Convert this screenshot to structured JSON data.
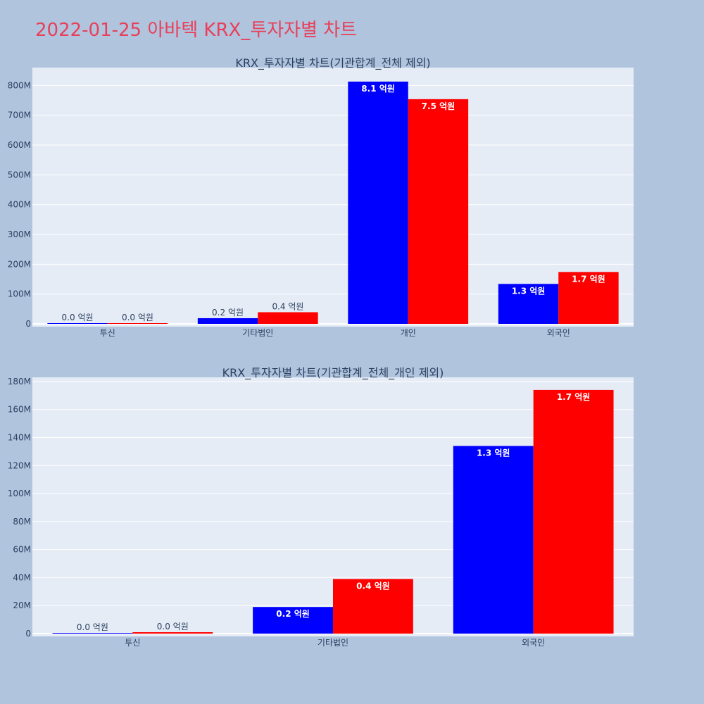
{
  "page": {
    "title": "2022-01-25 아바텍 KRX_투자자별 차트"
  },
  "colors": {
    "background": "#b0c4de",
    "plot_background": "#e5ecf6",
    "grid": "#ffffff",
    "title": "#e8405a",
    "text": "#2a3f5f"
  },
  "chart_data": [
    {
      "type": "bar",
      "title": "KRX_투자자별 차트(기관합계_전체 제외)",
      "categories": [
        "투신",
        "기타법인",
        "개인",
        "외국인"
      ],
      "series": [
        {
          "color": "#0000ff",
          "values": [
            500000,
            19000000,
            813000000,
            134000000
          ],
          "labels": [
            "0.0 억원",
            "0.2 억원",
            "8.1 억원",
            "1.3 억원"
          ]
        },
        {
          "color": "#ff0000",
          "values": [
            1000000,
            39000000,
            754000000,
            174000000
          ],
          "labels": [
            "0.0 억원",
            "0.4 억원",
            "7.5 억원",
            "1.7 억원"
          ]
        }
      ],
      "yticks": [
        "0",
        "100M",
        "200M",
        "300M",
        "400M",
        "500M",
        "600M",
        "700M",
        "800M"
      ],
      "ytick_values": [
        0,
        100000000,
        200000000,
        300000000,
        400000000,
        500000000,
        600000000,
        700000000,
        800000000
      ],
      "ylim": [
        0,
        860000000
      ],
      "grid": true
    },
    {
      "type": "bar",
      "title": "KRX_투자자별 차트(기관합계_전체_개인 제외)",
      "categories": [
        "투신",
        "기타법인",
        "외국인"
      ],
      "series": [
        {
          "color": "#0000ff",
          "values": [
            500000,
            19000000,
            134000000
          ],
          "labels": [
            "0.0 억원",
            "0.2 억원",
            "1.3 억원"
          ]
        },
        {
          "color": "#ff0000",
          "values": [
            1000000,
            39000000,
            174000000
          ],
          "labels": [
            "0.0 억원",
            "0.4 억원",
            "1.7 억원"
          ]
        }
      ],
      "yticks": [
        "0",
        "20M",
        "40M",
        "60M",
        "80M",
        "100M",
        "120M",
        "140M",
        "160M",
        "180M"
      ],
      "ytick_values": [
        0,
        20000000,
        40000000,
        60000000,
        80000000,
        100000000,
        120000000,
        140000000,
        160000000,
        180000000
      ],
      "ylim": [
        0,
        183000000
      ],
      "grid": true
    }
  ]
}
